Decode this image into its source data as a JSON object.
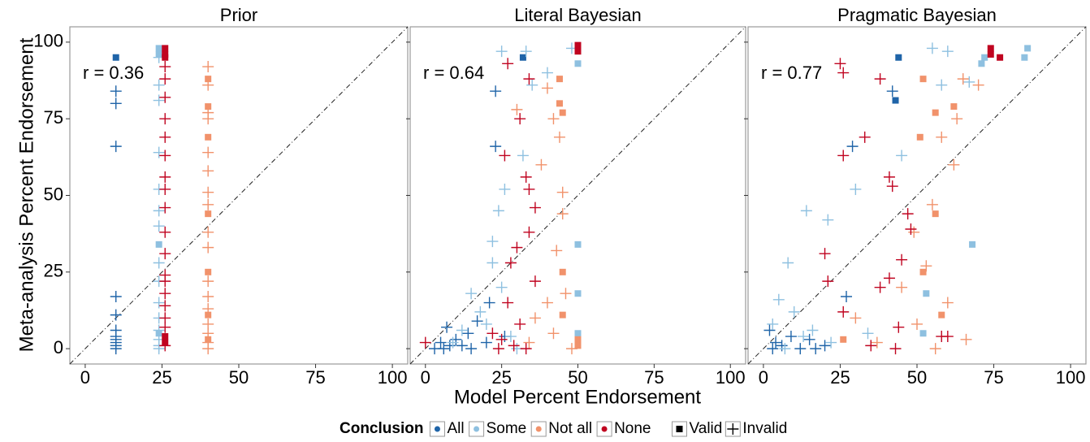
{
  "chart_data": [
    {
      "type": "scatter",
      "title": "Prior",
      "annotation": "r = 0.36",
      "xlim": [
        -5,
        105
      ],
      "ylim": [
        -5,
        105
      ],
      "xticks": [
        0,
        25,
        50,
        75,
        100
      ],
      "yticks": [
        0,
        25,
        50,
        75,
        100
      ],
      "series": [
        {
          "conclusion": "All",
          "validity": "Valid",
          "x": [
            10
          ],
          "y": [
            95
          ]
        },
        {
          "conclusion": "All",
          "validity": "Invalid",
          "x": [
            10,
            10,
            10,
            10,
            10,
            10,
            10,
            10,
            10,
            10,
            10
          ],
          "y": [
            84,
            80,
            66,
            17,
            11,
            6,
            4,
            3,
            2,
            1,
            0
          ]
        },
        {
          "conclusion": "Some",
          "validity": "Valid",
          "x": [
            24,
            24,
            24,
            24
          ],
          "y": [
            98,
            96,
            34,
            5
          ]
        },
        {
          "conclusion": "Some",
          "validity": "Invalid",
          "x": [
            24,
            24,
            24,
            24,
            24,
            24,
            24,
            24,
            24,
            24,
            24,
            24,
            24,
            24,
            24
          ],
          "y": [
            95,
            86,
            81,
            64,
            52,
            45,
            40,
            28,
            22,
            15,
            10,
            6,
            3,
            1,
            0
          ]
        },
        {
          "conclusion": "Not all",
          "validity": "Valid",
          "x": [
            40,
            40,
            40,
            40,
            40,
            40,
            40
          ],
          "y": [
            88,
            79,
            69,
            44,
            25,
            11,
            3
          ]
        },
        {
          "conclusion": "Not all",
          "validity": "Invalid",
          "x": [
            40,
            40,
            40,
            40,
            40,
            40,
            40,
            40,
            40,
            40,
            40,
            40,
            40,
            40,
            40,
            40,
            40
          ],
          "y": [
            92,
            86,
            77,
            75,
            64,
            58,
            51,
            47,
            38,
            33,
            22,
            17,
            13,
            8,
            5,
            2,
            0
          ]
        },
        {
          "conclusion": "None",
          "validity": "Valid",
          "x": [
            26,
            26,
            26,
            26,
            26
          ],
          "y": [
            98,
            96,
            95,
            4,
            2
          ]
        },
        {
          "conclusion": "None",
          "validity": "Invalid",
          "x": [
            26,
            26,
            26,
            26,
            26,
            26,
            26,
            26,
            26,
            26,
            26,
            26,
            26,
            26,
            26,
            26,
            26,
            26
          ],
          "y": [
            92,
            88,
            82,
            75,
            69,
            63,
            56,
            52,
            46,
            38,
            31,
            24,
            22,
            18,
            14,
            10,
            7,
            1
          ]
        }
      ]
    },
    {
      "type": "scatter",
      "title": "Literal Bayesian",
      "annotation": "r = 0.64",
      "xlim": [
        -5,
        105
      ],
      "ylim": [
        -5,
        105
      ],
      "xticks": [
        0,
        25,
        50,
        75,
        100
      ],
      "yticks": [
        0,
        25,
        50,
        75,
        100
      ],
      "series": [
        {
          "conclusion": "All",
          "validity": "Valid",
          "x": [
            32
          ],
          "y": [
            95
          ]
        },
        {
          "conclusion": "All",
          "validity": "Invalid",
          "x": [
            23,
            23,
            5,
            7,
            10,
            12,
            14,
            17,
            20,
            8,
            3,
            15,
            21,
            26,
            6
          ],
          "y": [
            84,
            66,
            2,
            7,
            3,
            1,
            5,
            9,
            2,
            1,
            0,
            0,
            15,
            4,
            0
          ]
        },
        {
          "conclusion": "Some",
          "validity": "Valid",
          "x": [
            50,
            50,
            50,
            50,
            50
          ],
          "y": [
            98,
            93,
            34,
            18,
            5
          ]
        },
        {
          "conclusion": "Some",
          "validity": "Invalid",
          "x": [
            25,
            33,
            35,
            22,
            24,
            26,
            22,
            15,
            18,
            20,
            12,
            28,
            30,
            9,
            25,
            32,
            40,
            48
          ],
          "y": [
            97,
            97,
            86,
            28,
            45,
            52,
            35,
            18,
            12,
            8,
            6,
            4,
            0,
            2,
            20,
            63,
            90,
            98
          ]
        },
        {
          "conclusion": "Not all",
          "validity": "Valid",
          "x": [
            44,
            44,
            45,
            50,
            50,
            45,
            45
          ],
          "y": [
            88,
            80,
            77,
            3,
            1,
            25,
            11
          ]
        },
        {
          "conclusion": "Not all",
          "validity": "Invalid",
          "x": [
            40,
            42,
            44,
            45,
            45,
            38,
            46,
            40,
            36,
            42,
            34,
            48,
            43,
            30
          ],
          "y": [
            85,
            75,
            69,
            51,
            44,
            60,
            18,
            15,
            10,
            5,
            2,
            0,
            32,
            78
          ]
        },
        {
          "conclusion": "None",
          "validity": "Valid",
          "x": [
            50,
            50
          ],
          "y": [
            99,
            97
          ]
        },
        {
          "conclusion": "None",
          "validity": "Invalid",
          "x": [
            27,
            34,
            31,
            26,
            33,
            34,
            36,
            34,
            30,
            28,
            36,
            27,
            31,
            25,
            29,
            33,
            0,
            24,
            22
          ],
          "y": [
            93,
            88,
            75,
            63,
            56,
            52,
            46,
            38,
            33,
            28,
            22,
            15,
            8,
            3,
            1,
            0,
            2,
            0,
            5
          ]
        }
      ]
    },
    {
      "type": "scatter",
      "title": "Pragmatic Bayesian",
      "annotation": "r = 0.77",
      "xlim": [
        -5,
        105
      ],
      "ylim": [
        -5,
        105
      ],
      "xticks": [
        0,
        25,
        50,
        75,
        100
      ],
      "yticks": [
        0,
        25,
        50,
        75,
        100
      ],
      "series": [
        {
          "conclusion": "All",
          "validity": "Valid",
          "x": [
            44,
            43
          ],
          "y": [
            95,
            81
          ]
        },
        {
          "conclusion": "All",
          "validity": "Invalid",
          "x": [
            2,
            4,
            6,
            9,
            12,
            15,
            17,
            27,
            29,
            42,
            3,
            20
          ],
          "y": [
            6,
            2,
            1,
            4,
            0,
            3,
            0,
            17,
            66,
            84,
            0,
            1
          ]
        },
        {
          "conclusion": "Some",
          "validity": "Valid",
          "x": [
            86,
            85,
            72,
            71,
            68,
            53,
            52
          ],
          "y": [
            98,
            95,
            95,
            93,
            34,
            18,
            5
          ]
        },
        {
          "conclusion": "Some",
          "validity": "Invalid",
          "x": [
            55,
            60,
            30,
            14,
            21,
            8,
            5,
            10,
            3,
            16,
            13,
            22,
            7,
            58,
            67,
            45,
            34
          ],
          "y": [
            98,
            97,
            52,
            45,
            42,
            28,
            16,
            12,
            8,
            6,
            4,
            2,
            0,
            86,
            87,
            63,
            5
          ]
        },
        {
          "conclusion": "Not all",
          "validity": "Valid",
          "x": [
            52,
            62,
            56,
            51,
            56,
            52,
            58,
            26
          ],
          "y": [
            88,
            79,
            77,
            69,
            44,
            25,
            11,
            3
          ]
        },
        {
          "conclusion": "Not all",
          "validity": "Invalid",
          "x": [
            65,
            70,
            63,
            58,
            62,
            55,
            49,
            53,
            45,
            60,
            50,
            66,
            56,
            37,
            30
          ],
          "y": [
            88,
            86,
            75,
            69,
            60,
            47,
            38,
            27,
            20,
            15,
            8,
            3,
            0,
            2,
            10
          ]
        },
        {
          "conclusion": "None",
          "validity": "Valid",
          "x": [
            74,
            74,
            77
          ],
          "y": [
            98,
            96,
            95
          ]
        },
        {
          "conclusion": "None",
          "validity": "Invalid",
          "x": [
            25,
            26,
            38,
            33,
            26,
            41,
            42,
            47,
            48,
            45,
            41,
            20,
            21,
            38,
            26,
            44,
            58,
            60,
            35,
            43
          ],
          "y": [
            93,
            90,
            88,
            69,
            63,
            56,
            53,
            44,
            39,
            29,
            23,
            31,
            22,
            20,
            12,
            7,
            4,
            4,
            1,
            0
          ]
        }
      ]
    }
  ],
  "x_label": "Model Percent Endorsement",
  "y_label": "Meta-analysis Percent Endorsement",
  "legend": {
    "title": "Conclusion",
    "conclusions": [
      {
        "name": "All",
        "color": "#1f64a8"
      },
      {
        "name": "Some",
        "color": "#8ec0e0"
      },
      {
        "name": "Not all",
        "color": "#f1926b"
      },
      {
        "name": "None",
        "color": "#c00420"
      }
    ],
    "validity": [
      {
        "name": "Valid",
        "marker": "square"
      },
      {
        "name": "Invalid",
        "marker": "plus"
      }
    ]
  }
}
